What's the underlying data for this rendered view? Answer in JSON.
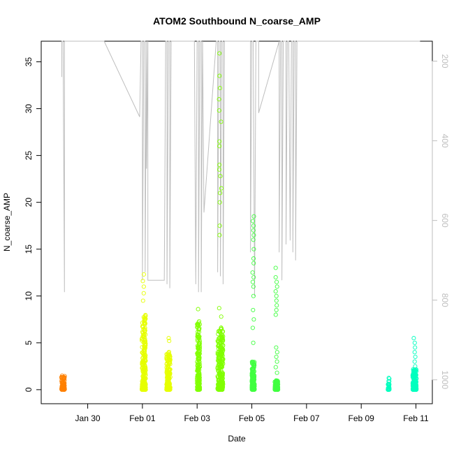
{
  "chart_data": {
    "type": "scatter",
    "title": "ATOM2 Southbound N_coarse_AMP",
    "xlabel": "Date",
    "ylabel": "N_coarse_AMP",
    "x_ticks": [
      "Jan 30",
      "Feb 01",
      "Feb 03",
      "Feb 05",
      "Feb 07",
      "Feb 09",
      "Feb 11"
    ],
    "x_tick_days": [
      30,
      32,
      34,
      36,
      38,
      40,
      42
    ],
    "xlim_days": [
      28.3,
      42.6
    ],
    "y_ticks": [
      0,
      5,
      10,
      15,
      20,
      25,
      30,
      35
    ],
    "ylim": [
      -1.5,
      37.2
    ],
    "y2_ticks": [
      200,
      400,
      600,
      800,
      1000
    ],
    "y2lim": [
      1060,
      150
    ],
    "grid": false,
    "colors": {
      "axis": "#000000",
      "secondary_axis": "#bebebe",
      "line": "#bebebe"
    },
    "series": [
      {
        "color": "#ff8000",
        "clusters": [
          {
            "day": 29.1,
            "width": 0.12,
            "max": 1.6,
            "n": 80,
            "outliers": []
          }
        ]
      },
      {
        "color": "#e6ff00",
        "clusters": [
          {
            "day": 32.05,
            "width": 0.14,
            "max": 8.0,
            "n": 260,
            "outliers": [
              9.5,
              10.3,
              11.0,
              11.6,
              12.3
            ]
          },
          {
            "day": 32.95,
            "width": 0.14,
            "max": 4.2,
            "n": 180,
            "outliers": [
              5.2,
              5.5
            ]
          }
        ]
      },
      {
        "color": "#80ff00",
        "clusters": [
          {
            "day": 34.05,
            "width": 0.1,
            "max": 7.3,
            "n": 200,
            "outliers": [
              8.6
            ]
          },
          {
            "day": 34.85,
            "width": 0.2,
            "max": 6.8,
            "n": 260,
            "outliers": [
              7.8,
              8.7,
              16.5,
              17.5,
              20.0,
              21.0,
              21.5,
              22.8,
              23.5,
              24.0,
              26.0,
              26.5,
              28.6,
              29.8,
              31.0,
              32.2,
              33.5,
              35.9
            ]
          }
        ]
      },
      {
        "color": "#40ff40",
        "clusters": [
          {
            "day": 36.05,
            "width": 0.1,
            "max": 3.0,
            "n": 180,
            "outliers": [
              5.0,
              6.6,
              7.5,
              8.5,
              10.0,
              11.0,
              11.5,
              12.0,
              12.5,
              13.5,
              14.0,
              15.0,
              16.0,
              16.5,
              17.0,
              17.5,
              18.0,
              18.5
            ]
          },
          {
            "day": 36.9,
            "width": 0.12,
            "max": 1.0,
            "n": 150,
            "outliers": [
              1.8,
              2.4,
              3.0,
              3.5,
              4.0,
              4.5,
              8.0,
              8.5,
              9.0,
              9.5,
              10.0,
              10.5,
              11.0,
              11.5,
              12.0,
              13.0
            ]
          }
        ]
      },
      {
        "color": "#00ffbf",
        "clusters": [
          {
            "day": 41.0,
            "width": 0.06,
            "max": 1.3,
            "n": 40,
            "outliers": []
          },
          {
            "day": 41.95,
            "width": 0.14,
            "max": 2.2,
            "n": 200,
            "outliers": [
              2.5,
              3.0,
              3.5,
              4.0,
              4.5,
              5.0,
              5.5
            ]
          }
        ]
      }
    ],
    "line_y2_points": [
      [
        29.05,
        150
      ],
      [
        29.05,
        240
      ],
      [
        29.05,
        150
      ],
      [
        29.1,
        150
      ],
      [
        29.15,
        780
      ],
      [
        29.15,
        150
      ],
      [
        30.6,
        150
      ],
      [
        31.9,
        340
      ],
      [
        31.95,
        150
      ],
      [
        32.0,
        150
      ],
      [
        32.0,
        750
      ],
      [
        32.05,
        150
      ],
      [
        32.1,
        150
      ],
      [
        32.1,
        730
      ],
      [
        32.15,
        150
      ],
      [
        32.15,
        470
      ],
      [
        32.2,
        150
      ],
      [
        32.2,
        750
      ],
      [
        32.8,
        750
      ],
      [
        32.85,
        150
      ],
      [
        32.9,
        150
      ],
      [
        32.9,
        760
      ],
      [
        32.95,
        150
      ],
      [
        32.95,
        150
      ],
      [
        33.0,
        150
      ],
      [
        33.0,
        770
      ],
      [
        33.05,
        150
      ],
      [
        33.9,
        150
      ],
      [
        33.95,
        760
      ],
      [
        34.0,
        150
      ],
      [
        34.05,
        150
      ],
      [
        34.05,
        780
      ],
      [
        34.1,
        150
      ],
      [
        34.15,
        150
      ],
      [
        34.15,
        780
      ],
      [
        34.2,
        150
      ],
      [
        34.25,
        580
      ],
      [
        34.7,
        150
      ],
      [
        34.75,
        150
      ],
      [
        34.75,
        730
      ],
      [
        34.8,
        150
      ],
      [
        34.85,
        150
      ],
      [
        34.85,
        740
      ],
      [
        34.9,
        150
      ],
      [
        34.95,
        150
      ],
      [
        34.95,
        760
      ],
      [
        35.0,
        150
      ],
      [
        35.05,
        150
      ],
      [
        35.9,
        150
      ],
      [
        35.95,
        150
      ],
      [
        35.95,
        680
      ],
      [
        36.0,
        150
      ],
      [
        36.05,
        150
      ],
      [
        36.1,
        790
      ],
      [
        36.15,
        150
      ],
      [
        36.25,
        150
      ],
      [
        36.25,
        330
      ],
      [
        37.0,
        150
      ],
      [
        37.0,
        680
      ],
      [
        37.05,
        150
      ],
      [
        37.1,
        150
      ],
      [
        37.1,
        750
      ],
      [
        37.15,
        150
      ],
      [
        37.2,
        150
      ],
      [
        37.25,
        150
      ],
      [
        37.25,
        660
      ],
      [
        37.3,
        150
      ],
      [
        37.35,
        150
      ],
      [
        37.4,
        650
      ],
      [
        37.45,
        150
      ],
      [
        37.5,
        150
      ],
      [
        37.5,
        680
      ],
      [
        37.55,
        150
      ],
      [
        37.6,
        150
      ],
      [
        37.6,
        700
      ],
      [
        37.65,
        150
      ],
      [
        37.7,
        150
      ],
      [
        37.75,
        150
      ],
      [
        37.8,
        150
      ],
      [
        37.85,
        150
      ],
      [
        37.95,
        150
      ],
      [
        38.05,
        150
      ],
      [
        38.2,
        150
      ],
      [
        38.35,
        150
      ],
      [
        38.5,
        150
      ],
      [
        38.65,
        150
      ],
      [
        38.8,
        150
      ],
      [
        38.95,
        150
      ],
      [
        39.1,
        150
      ],
      [
        39.25,
        150
      ],
      [
        39.4,
        150
      ],
      [
        39.55,
        150
      ],
      [
        39.7,
        150
      ],
      [
        39.85,
        150
      ],
      [
        40.0,
        150
      ],
      [
        40.15,
        150
      ],
      [
        40.3,
        150
      ],
      [
        40.45,
        150
      ],
      [
        40.6,
        150
      ],
      [
        40.75,
        150
      ],
      [
        40.9,
        150
      ],
      [
        40.95,
        150
      ],
      [
        41.0,
        150
      ],
      [
        41.05,
        150
      ],
      [
        41.1,
        150
      ],
      [
        41.15,
        150
      ],
      [
        41.2,
        150
      ],
      [
        41.3,
        150
      ],
      [
        41.4,
        150
      ],
      [
        41.5,
        150
      ],
      [
        41.6,
        150
      ],
      [
        41.7,
        150
      ],
      [
        41.8,
        150
      ],
      [
        41.85,
        150
      ],
      [
        41.9,
        150
      ],
      [
        41.95,
        150
      ],
      [
        42.0,
        150
      ],
      [
        42.05,
        150
      ],
      [
        42.1,
        150
      ],
      [
        42.15,
        150
      ]
    ]
  }
}
